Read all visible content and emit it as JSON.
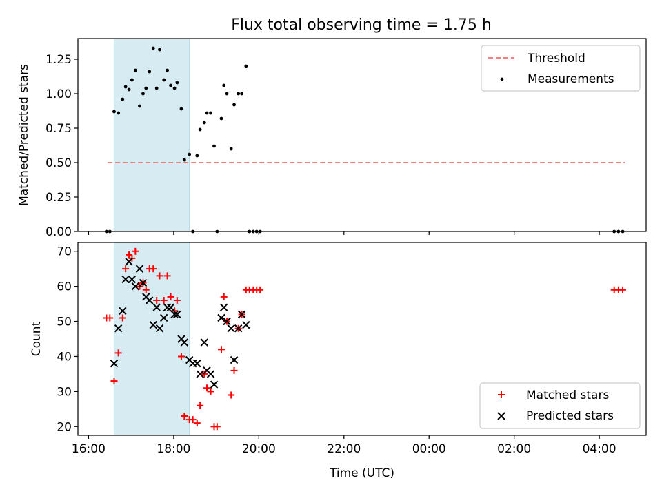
{
  "title": "Flux total observing time = 1.75 h",
  "colors": {
    "threshold": "#f08080",
    "measurements": "#000000",
    "matched": "#ff0000",
    "predicted": "#000000",
    "shade": "#add8e6"
  },
  "chart_data": [
    {
      "type": "scatter",
      "ylabel": "Matched/Predicted stars",
      "ylim": [
        0,
        1.4
      ],
      "yticks": [
        0.0,
        0.25,
        0.5,
        0.75,
        1.0,
        1.25
      ],
      "ytick_labels": [
        "0.00",
        "0.25",
        "0.50",
        "0.75",
        "1.00",
        "1.25"
      ],
      "xlim": [
        15.75,
        29.1
      ],
      "legend": "top-right",
      "shaded_span": [
        16.6,
        18.37
      ],
      "threshold": {
        "name": "Threshold",
        "y": 0.5,
        "x_range": [
          16.45,
          28.6
        ]
      },
      "series": [
        {
          "name": "Measurements",
          "marker": "dot",
          "points": [
            [
              16.42,
              0.0
            ],
            [
              16.5,
              0.0
            ],
            [
              16.6,
              0.87
            ],
            [
              16.7,
              0.86
            ],
            [
              16.8,
              0.96
            ],
            [
              16.87,
              1.05
            ],
            [
              16.95,
              1.03
            ],
            [
              17.02,
              1.1
            ],
            [
              17.1,
              1.17
            ],
            [
              17.2,
              0.91
            ],
            [
              17.28,
              1.0
            ],
            [
              17.35,
              1.04
            ],
            [
              17.43,
              1.16
            ],
            [
              17.52,
              1.33
            ],
            [
              17.6,
              1.04
            ],
            [
              17.67,
              1.32
            ],
            [
              17.77,
              1.1
            ],
            [
              17.85,
              1.17
            ],
            [
              17.93,
              1.06
            ],
            [
              18.02,
              1.04
            ],
            [
              18.08,
              1.08
            ],
            [
              18.18,
              0.89
            ],
            [
              18.25,
              0.52
            ],
            [
              18.37,
              0.56
            ],
            [
              18.45,
              0.0
            ],
            [
              18.55,
              0.55
            ],
            [
              18.62,
              0.74
            ],
            [
              18.72,
              0.79
            ],
            [
              18.78,
              0.86
            ],
            [
              18.87,
              0.86
            ],
            [
              18.95,
              0.62
            ],
            [
              19.02,
              0.0
            ],
            [
              19.12,
              0.82
            ],
            [
              19.18,
              1.06
            ],
            [
              19.25,
              1.0
            ],
            [
              19.35,
              0.6
            ],
            [
              19.42,
              0.92
            ],
            [
              19.52,
              1.0
            ],
            [
              19.6,
              1.0
            ],
            [
              19.7,
              1.2
            ],
            [
              19.78,
              0.0
            ],
            [
              19.87,
              0.0
            ],
            [
              19.95,
              0.0
            ],
            [
              20.03,
              0.0
            ],
            [
              28.35,
              0.0
            ],
            [
              28.45,
              0.0
            ],
            [
              28.55,
              0.0
            ]
          ]
        }
      ]
    },
    {
      "type": "scatter",
      "ylabel": "Count",
      "xlabel": "Time (UTC)",
      "ylim": [
        17.5,
        72.5
      ],
      "yticks": [
        20,
        30,
        40,
        50,
        60,
        70
      ],
      "ytick_labels": [
        "20",
        "30",
        "40",
        "50",
        "60",
        "70"
      ],
      "xlim": [
        15.75,
        29.1
      ],
      "xticks": [
        16,
        18,
        20,
        22,
        24,
        26,
        28
      ],
      "xtick_labels": [
        "16:00",
        "18:00",
        "20:00",
        "22:00",
        "00:00",
        "02:00",
        "04:00"
      ],
      "legend": "bottom-right",
      "shaded_span": [
        16.6,
        18.37
      ],
      "series": [
        {
          "name": "Matched stars",
          "marker": "plus",
          "points": [
            [
              16.42,
              51
            ],
            [
              16.5,
              51
            ],
            [
              16.6,
              33
            ],
            [
              16.7,
              41
            ],
            [
              16.8,
              51
            ],
            [
              16.87,
              65
            ],
            [
              16.95,
              69
            ],
            [
              17.02,
              68
            ],
            [
              17.1,
              70
            ],
            [
              17.2,
              60
            ],
            [
              17.28,
              61
            ],
            [
              17.35,
              59
            ],
            [
              17.43,
              65
            ],
            [
              17.52,
              65
            ],
            [
              17.6,
              56
            ],
            [
              17.67,
              63
            ],
            [
              17.77,
              56
            ],
            [
              17.85,
              63
            ],
            [
              17.93,
              57
            ],
            [
              18.02,
              53
            ],
            [
              18.08,
              56
            ],
            [
              18.18,
              40
            ],
            [
              18.25,
              23
            ],
            [
              18.37,
              22
            ],
            [
              18.45,
              22
            ],
            [
              18.55,
              21
            ],
            [
              18.62,
              26
            ],
            [
              18.72,
              35
            ],
            [
              18.78,
              31
            ],
            [
              18.87,
              30
            ],
            [
              18.95,
              20
            ],
            [
              19.02,
              20
            ],
            [
              19.12,
              42
            ],
            [
              19.18,
              57
            ],
            [
              19.25,
              50
            ],
            [
              19.35,
              29
            ],
            [
              19.42,
              36
            ],
            [
              19.52,
              48
            ],
            [
              19.6,
              52
            ],
            [
              19.7,
              59
            ],
            [
              19.78,
              59
            ],
            [
              19.87,
              59
            ],
            [
              19.95,
              59
            ],
            [
              20.03,
              59
            ],
            [
              28.35,
              59
            ],
            [
              28.45,
              59
            ],
            [
              28.55,
              59
            ]
          ]
        },
        {
          "name": "Predicted stars",
          "marker": "x",
          "points": [
            [
              16.6,
              38
            ],
            [
              16.7,
              48
            ],
            [
              16.8,
              53
            ],
            [
              16.87,
              62
            ],
            [
              16.95,
              67
            ],
            [
              17.02,
              62
            ],
            [
              17.1,
              60
            ],
            [
              17.2,
              65
            ],
            [
              17.28,
              61
            ],
            [
              17.35,
              57
            ],
            [
              17.43,
              56
            ],
            [
              17.52,
              49
            ],
            [
              17.6,
              54
            ],
            [
              17.67,
              48
            ],
            [
              17.77,
              51
            ],
            [
              17.85,
              54
            ],
            [
              17.93,
              54
            ],
            [
              18.02,
              52
            ],
            [
              18.08,
              52
            ],
            [
              18.18,
              45
            ],
            [
              18.25,
              44
            ],
            [
              18.37,
              39
            ],
            [
              18.45,
              38
            ],
            [
              18.55,
              38
            ],
            [
              18.62,
              35
            ],
            [
              18.72,
              44
            ],
            [
              18.78,
              36
            ],
            [
              18.87,
              35
            ],
            [
              18.95,
              32
            ],
            [
              19.12,
              51
            ],
            [
              19.18,
              54
            ],
            [
              19.25,
              50
            ],
            [
              19.35,
              48
            ],
            [
              19.42,
              39
            ],
            [
              19.52,
              48
            ],
            [
              19.6,
              52
            ],
            [
              19.7,
              49
            ]
          ]
        }
      ]
    }
  ]
}
